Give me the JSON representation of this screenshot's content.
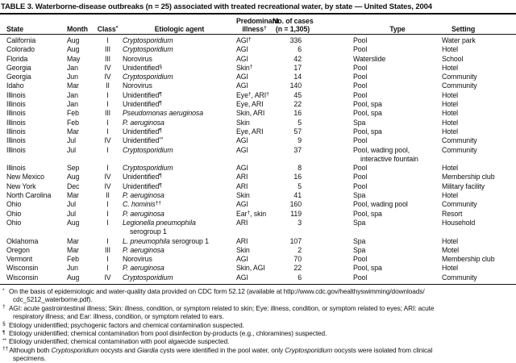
{
  "theme": {
    "text_color": "#111111",
    "background_color": "#ffffff"
  },
  "title": "TABLE 3. Waterborne-disease outbreaks (n = 25) associated with treated recreational water, by state — United States, 2004",
  "columns": {
    "state": "State",
    "month": "Month",
    "class_label": "Class",
    "class_sup": "*",
    "agent": "Etiologic agent",
    "illness1": "Predominant",
    "illness2_label": "illness",
    "illness2_sup": "†",
    "cases1": "No. of cases",
    "cases2": "(n = 1,305)",
    "type": "Type",
    "setting": "Setting"
  },
  "rows": [
    {
      "state": "California",
      "month": "Aug",
      "cls": "I",
      "agent": [
        [
          "Cryptosporidium",
          "i"
        ]
      ],
      "agent2": "",
      "illness": [
        [
          "AGI"
        ],
        [
          "†",
          "s"
        ]
      ],
      "cases": "336",
      "type": "Pool",
      "type2": "",
      "setting": "Water park"
    },
    {
      "state": "Colorado",
      "month": "Aug",
      "cls": "III",
      "agent": [
        [
          "Cryptosporidium",
          "i"
        ]
      ],
      "agent2": "",
      "illness": [
        [
          "AGI"
        ]
      ],
      "cases": "6",
      "type": "Pool",
      "type2": "",
      "setting": "Hotel"
    },
    {
      "state": "Florida",
      "month": "May",
      "cls": "III",
      "agent": [
        [
          "Norovirus"
        ]
      ],
      "agent2": "",
      "illness": [
        [
          "AGI"
        ]
      ],
      "cases": "42",
      "type": "Waterslide",
      "type2": "",
      "setting": "School"
    },
    {
      "state": "Georgia",
      "month": "Jan",
      "cls": "IV",
      "agent": [
        [
          "Unidentified"
        ],
        [
          "§",
          "s"
        ]
      ],
      "agent2": "",
      "illness": [
        [
          "Skin"
        ],
        [
          "†",
          "s"
        ]
      ],
      "cases": "17",
      "type": "Pool",
      "type2": "",
      "setting": "Hotel"
    },
    {
      "state": "Georgia",
      "month": "Jun",
      "cls": "IV",
      "agent": [
        [
          "Cryptosporidium",
          "i"
        ]
      ],
      "agent2": "",
      "illness": [
        [
          "AGI"
        ]
      ],
      "cases": "14",
      "type": "Pool",
      "type2": "",
      "setting": "Community"
    },
    {
      "state": "Idaho",
      "month": "Mar",
      "cls": "II",
      "agent": [
        [
          "Norovirus"
        ]
      ],
      "agent2": "",
      "illness": [
        [
          "AGI"
        ]
      ],
      "cases": "140",
      "type": "Pool",
      "type2": "",
      "setting": "Community"
    },
    {
      "state": "Illinois",
      "month": "Jan",
      "cls": "I",
      "agent": [
        [
          "Unidentified"
        ],
        [
          "¶",
          "s"
        ]
      ],
      "agent2": "",
      "illness": [
        [
          "Eye"
        ],
        [
          "†",
          "s"
        ],
        [
          ", ARI"
        ],
        [
          "†",
          "s"
        ]
      ],
      "cases": "45",
      "type": "Pool",
      "type2": "",
      "setting": "Hotel"
    },
    {
      "state": "Illinois",
      "month": "Jan",
      "cls": "I",
      "agent": [
        [
          "Unidentified"
        ],
        [
          "¶",
          "s"
        ]
      ],
      "agent2": "",
      "illness": [
        [
          "Eye, ARI"
        ]
      ],
      "cases": "22",
      "type": "Pool, spa",
      "type2": "",
      "setting": "Hotel"
    },
    {
      "state": "Illinois",
      "month": "Feb",
      "cls": "III",
      "agent": [
        [
          "Pseudomonas aeruginosa",
          "i"
        ]
      ],
      "agent2": "",
      "illness": [
        [
          "Skin, ARI"
        ]
      ],
      "cases": "16",
      "type": "Pool, spa",
      "type2": "",
      "setting": "Hotel"
    },
    {
      "state": "Illinois",
      "month": "Feb",
      "cls": "I",
      "agent": [
        [
          "P. aeruginosa",
          "i"
        ]
      ],
      "agent2": "",
      "illness": [
        [
          "Skin"
        ]
      ],
      "cases": "5",
      "type": "Spa",
      "type2": "",
      "setting": "Hotel"
    },
    {
      "state": "Illinois",
      "month": "Mar",
      "cls": "I",
      "agent": [
        [
          "Unidentified"
        ],
        [
          "¶",
          "s"
        ]
      ],
      "agent2": "",
      "illness": [
        [
          "Eye, ARI"
        ]
      ],
      "cases": "57",
      "type": "Pool, spa",
      "type2": "",
      "setting": "Hotel"
    },
    {
      "state": "Illinois",
      "month": "Jul",
      "cls": "IV",
      "agent": [
        [
          "Unidentified"
        ],
        [
          "**",
          "s"
        ]
      ],
      "agent2": "",
      "illness": [
        [
          "AGI"
        ]
      ],
      "cases": "9",
      "type": "Pool",
      "type2": "",
      "setting": "Community"
    },
    {
      "state": "Illinois",
      "month": "Jul",
      "cls": "I",
      "agent": [
        [
          "Cryptosporidium",
          "i"
        ]
      ],
      "agent2": "",
      "illness": [
        [
          "AGI"
        ]
      ],
      "cases": "37",
      "type": "Pool, wading pool,",
      "type2": "interactive fountain",
      "setting": "Community"
    },
    {
      "state": "Illinois",
      "month": "Sep",
      "cls": "I",
      "agent": [
        [
          "Cryptosporidium",
          "i"
        ]
      ],
      "agent2": "",
      "illness": [
        [
          "AGI"
        ]
      ],
      "cases": "8",
      "type": "Pool",
      "type2": "",
      "setting": "Hotel"
    },
    {
      "state": "New Mexico",
      "month": "Aug",
      "cls": "IV",
      "agent": [
        [
          "Unidentified"
        ],
        [
          "¶",
          "s"
        ]
      ],
      "agent2": "",
      "illness": [
        [
          "ARI"
        ]
      ],
      "cases": "16",
      "type": "Pool",
      "type2": "",
      "setting": "Membership club"
    },
    {
      "state": "New York",
      "month": "Dec",
      "cls": "IV",
      "agent": [
        [
          "Unidentified"
        ],
        [
          "¶",
          "s"
        ]
      ],
      "agent2": "",
      "illness": [
        [
          "ARI"
        ]
      ],
      "cases": "5",
      "type": "Pool",
      "type2": "",
      "setting": "Military facility"
    },
    {
      "state": "North Carolina",
      "month": "Mar",
      "cls": "II",
      "agent": [
        [
          "P. aeruginosa",
          "i"
        ]
      ],
      "agent2": "",
      "illness": [
        [
          "Skin"
        ]
      ],
      "cases": "41",
      "type": "Spa",
      "type2": "",
      "setting": "Hotel"
    },
    {
      "state": "Ohio",
      "month": "Jul",
      "cls": "I",
      "agent": [
        [
          "C. hominis",
          "i"
        ],
        [
          "††",
          "s"
        ]
      ],
      "agent2": "",
      "illness": [
        [
          "AGI"
        ]
      ],
      "cases": "160",
      "type": "Pool, wading pool",
      "type2": "",
      "setting": "Community"
    },
    {
      "state": "Ohio",
      "month": "Jul",
      "cls": "I",
      "agent": [
        [
          "P. aeruginosa",
          "i"
        ]
      ],
      "agent2": "",
      "illness": [
        [
          "Ear"
        ],
        [
          "†",
          "s"
        ],
        [
          ", skin"
        ]
      ],
      "cases": "119",
      "type": "Pool, spa",
      "type2": "",
      "setting": "Resort"
    },
    {
      "state": "Ohio",
      "month": "Aug",
      "cls": "I",
      "agent": [
        [
          "Legionella pneumophila",
          "i"
        ]
      ],
      "agent2": "serogroup 1",
      "illness": [
        [
          "ARI"
        ]
      ],
      "cases": "3",
      "type": "Spa",
      "type2": "",
      "setting": "Household"
    },
    {
      "state": "Oklahoma",
      "month": "Mar",
      "cls": "I",
      "agent": [
        [
          "L. pneumophila",
          "i"
        ],
        [
          " serogroup 1"
        ]
      ],
      "agent2": "",
      "illness": [
        [
          "ARI"
        ]
      ],
      "cases": "107",
      "type": "Spa",
      "type2": "",
      "setting": "Hotel"
    },
    {
      "state": "Oregon",
      "month": "Mar",
      "cls": "III",
      "agent": [
        [
          "P. aeruginosa",
          "i"
        ]
      ],
      "agent2": "",
      "illness": [
        [
          "Skin"
        ]
      ],
      "cases": "2",
      "type": "Spa",
      "type2": "",
      "setting": "Motel"
    },
    {
      "state": "Vermont",
      "month": "Feb",
      "cls": "I",
      "agent": [
        [
          "Norovirus"
        ]
      ],
      "agent2": "",
      "illness": [
        [
          "AGI"
        ]
      ],
      "cases": "70",
      "type": "Pool",
      "type2": "",
      "setting": "Membership club"
    },
    {
      "state": "Wisconsin",
      "month": "Jun",
      "cls": "I",
      "agent": [
        [
          "P. aeruginosa",
          "i"
        ]
      ],
      "agent2": "",
      "illness": [
        [
          "Skin, AGI"
        ]
      ],
      "cases": "22",
      "type": "Pool, spa",
      "type2": "",
      "setting": "Hotel"
    },
    {
      "state": "Wisconsin",
      "month": "Aug",
      "cls": "IV",
      "agent": [
        [
          "Cryptosporidium",
          "i"
        ]
      ],
      "agent2": "",
      "illness": [
        [
          "AGI"
        ]
      ],
      "cases": "6",
      "type": "Pool",
      "type2": "",
      "setting": "Community"
    }
  ],
  "footnotes": [
    {
      "marker": "*",
      "text": [
        [
          "On the basis of epidemiologic and water-quality data provided on CDC form 52.12 (available at http://www.cdc.gov/healthyswimming/downloads/"
        ],
        [
          "",
          "b"
        ],
        [
          "cdc_5212_waterborne.pdf)."
        ]
      ]
    },
    {
      "marker": "†",
      "text": [
        [
          "AGI: acute gastrointestinal illness; Skin: illness, condition, or symptom related to skin; Eye: illness, condition, or symptom related to eyes; ARI: acute"
        ],
        [
          "",
          "b"
        ],
        [
          "respiratory illness; and Ear: illness, condition, or symptom related to ears."
        ]
      ]
    },
    {
      "marker": "§",
      "text": [
        [
          "Etiology unidentified; psychogenic factors and chemical contamination suspected."
        ]
      ]
    },
    {
      "marker": "¶",
      "text": [
        [
          "Etiology unidentified; chemical contamination from pool disinfection by-products (e.g., chloramines) suspected."
        ]
      ]
    },
    {
      "marker": "**",
      "text": [
        [
          "Etiology unidentified; chemical contamination with pool algaecide suspected."
        ]
      ]
    },
    {
      "marker": "††",
      "text": [
        [
          "Although both "
        ],
        [
          "Cryptosporidium",
          "i"
        ],
        [
          " oocysts and "
        ],
        [
          "Giardia",
          "i"
        ],
        [
          " cysts were identified in the pool water, only "
        ],
        [
          "Cryptosporidium",
          "i"
        ],
        [
          " oocysts were isolated from clinical"
        ],
        [
          "",
          "b"
        ],
        [
          "specimens."
        ]
      ]
    }
  ]
}
